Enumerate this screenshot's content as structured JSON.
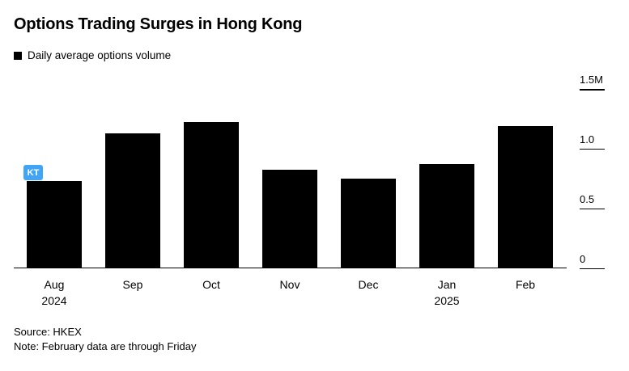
{
  "chart_data": {
    "type": "bar",
    "title": "Options Trading Surges in Hong Kong",
    "legend": "Daily average options volume",
    "categories": [
      "Aug 2024",
      "Sep",
      "Oct",
      "Nov",
      "Dec",
      "Jan 2025",
      "Feb"
    ],
    "values": [
      0.73,
      1.13,
      1.22,
      0.82,
      0.75,
      0.87,
      1.19
    ],
    "unit": "M contracts",
    "ylim": [
      0,
      1.5
    ],
    "yticks": [
      {
        "value": 1.5,
        "label": "1.5M"
      },
      {
        "value": 1.0,
        "label": "1.0"
      },
      {
        "value": 0.5,
        "label": "0.5"
      },
      {
        "value": 0,
        "label": "0"
      }
    ],
    "bar_color": "#000000",
    "axis_side": "right",
    "grid": false,
    "legend_position": "top-left"
  },
  "badge": {
    "text": "KT",
    "color": "#41a4f5"
  },
  "footer": {
    "source": "Source: HKEX",
    "note": "Note: February data are through Friday"
  }
}
